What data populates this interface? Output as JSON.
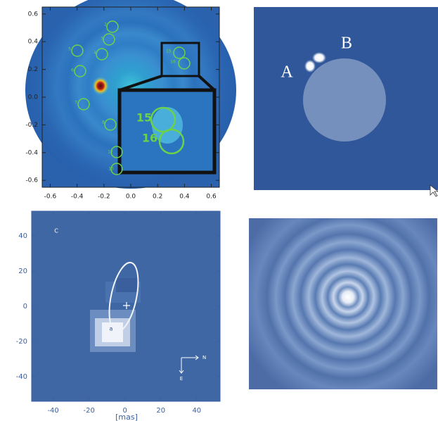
{
  "panels": [
    {
      "xlim": [
        -0.66,
        0.66
      ],
      "ylim": [
        -0.65,
        0.65
      ],
      "xticks": [
        -0.6,
        -0.4,
        -0.2,
        {
          "value": 0,
          "label": "0.0"
        },
        0.2,
        0.4,
        0.6
      ],
      "yticks": [
        -0.6,
        -0.4,
        -0.2,
        {
          "value": 0,
          "label": "0.0"
        },
        0.2,
        0.4,
        0.6
      ],
      "source_labels": [
        "2",
        "3",
        "4",
        "5",
        "6",
        "7",
        "8",
        "9",
        "15",
        "16",
        "12",
        "13"
      ],
      "inset_labels": [
        "15",
        "16"
      ]
    },
    {
      "labels": [
        "A",
        "B"
      ]
    },
    {
      "xlim": [
        -52,
        53
      ],
      "ylim": [
        -54,
        54
      ],
      "xticks": [
        -40,
        -20,
        0,
        20,
        40
      ],
      "yticks": [
        -40,
        -20,
        0,
        20,
        40
      ],
      "xlabel": "[mas]",
      "panel_label": "C",
      "compass": [
        "N",
        "E"
      ],
      "marker_label": "a"
    }
  ]
}
